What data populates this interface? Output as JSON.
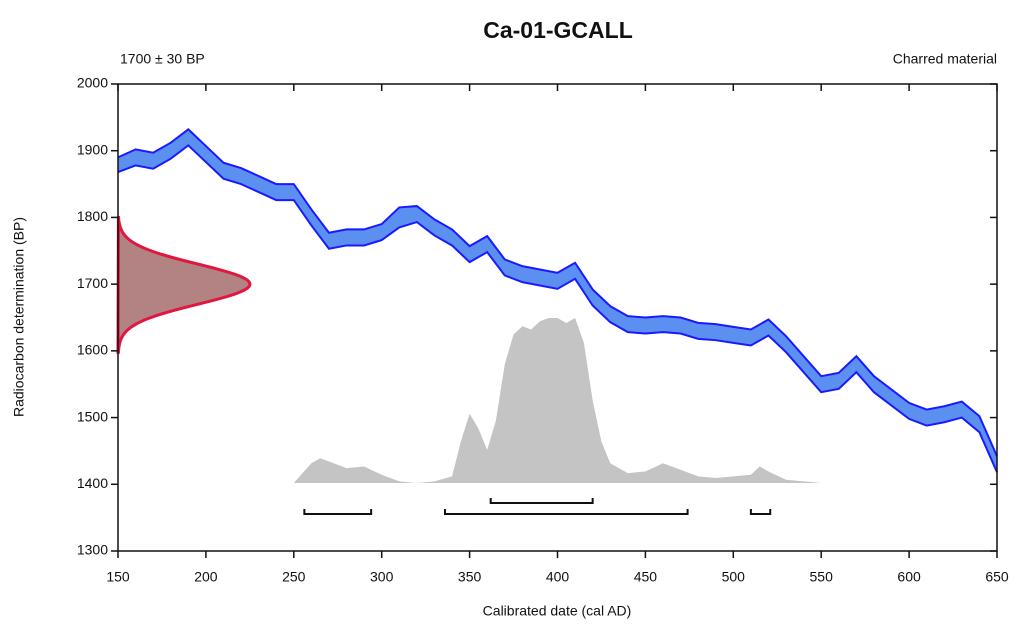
{
  "chart_data": {
    "type": "radiocarbon_calibration",
    "title": "Ca-01-GCALL",
    "measurement": {
      "label": "1700 ± 30 BP",
      "mean": 1700,
      "error": 30,
      "color": "#e0173f",
      "fill": "#b38383"
    },
    "material": "Charred material",
    "xlabel": "Calibrated date (cal AD)",
    "ylabel": "Radiocarbon determination (BP)",
    "xlim": [
      150,
      650
    ],
    "xticks": [
      150,
      200,
      250,
      300,
      350,
      400,
      450,
      500,
      550,
      600,
      650
    ],
    "ylim": [
      1300,
      2000
    ],
    "yticks": [
      1300,
      1400,
      1500,
      1600,
      1700,
      1800,
      1900,
      2000
    ],
    "calibration_curve": {
      "color": "#1a1aff",
      "fill": "#5b8ff0",
      "x": [
        150,
        160,
        170,
        180,
        190,
        200,
        210,
        220,
        230,
        240,
        250,
        260,
        270,
        280,
        290,
        300,
        310,
        320,
        330,
        340,
        350,
        360,
        370,
        380,
        390,
        400,
        410,
        420,
        430,
        440,
        450,
        460,
        470,
        480,
        490,
        500,
        510,
        520,
        530,
        540,
        550,
        560,
        570,
        580,
        590,
        600,
        610,
        620,
        630,
        640,
        650
      ],
      "upper": [
        1890,
        1902,
        1897,
        1912,
        1932,
        1907,
        1882,
        1874,
        1862,
        1850,
        1850,
        1812,
        1777,
        1782,
        1782,
        1790,
        1815,
        1817,
        1797,
        1782,
        1757,
        1772,
        1737,
        1727,
        1722,
        1717,
        1732,
        1692,
        1667,
        1652,
        1650,
        1652,
        1650,
        1642,
        1640,
        1636,
        1632,
        1647,
        1622,
        1592,
        1562,
        1567,
        1592,
        1562,
        1542,
        1522,
        1512,
        1517,
        1524,
        1502,
        1442
      ],
      "lower": [
        1868,
        1878,
        1873,
        1888,
        1908,
        1883,
        1858,
        1850,
        1838,
        1826,
        1826,
        1788,
        1753,
        1758,
        1758,
        1766,
        1785,
        1793,
        1773,
        1758,
        1733,
        1748,
        1713,
        1703,
        1698,
        1693,
        1708,
        1668,
        1643,
        1628,
        1626,
        1628,
        1626,
        1618,
        1616,
        1612,
        1608,
        1623,
        1598,
        1568,
        1538,
        1543,
        1568,
        1538,
        1518,
        1498,
        1488,
        1493,
        1500,
        1478,
        1418
      ]
    },
    "posterior": {
      "color": "#c4c4c4",
      "x": [
        250,
        260,
        265,
        270,
        280,
        290,
        300,
        310,
        320,
        330,
        340,
        345,
        350,
        355,
        360,
        365,
        370,
        375,
        380,
        385,
        390,
        395,
        400,
        405,
        410,
        415,
        420,
        425,
        430,
        440,
        450,
        460,
        470,
        480,
        490,
        500,
        510,
        515,
        520,
        530,
        540,
        550,
        580
      ],
      "values": [
        0,
        0.12,
        0.15,
        0.13,
        0.09,
        0.1,
        0.05,
        0.01,
        0,
        0.01,
        0.04,
        0.25,
        0.42,
        0.33,
        0.2,
        0.38,
        0.72,
        0.9,
        0.95,
        0.93,
        0.98,
        1,
        1,
        0.97,
        1,
        0.85,
        0.5,
        0.25,
        0.12,
        0.06,
        0.07,
        0.12,
        0.08,
        0.04,
        0.03,
        0.04,
        0.05,
        0.1,
        0.07,
        0.02,
        0.01,
        0,
        0
      ]
    },
    "ranges_68": [
      [
        362,
        420
      ]
    ],
    "ranges_95": [
      [
        256,
        294
      ],
      [
        336,
        474
      ],
      [
        510,
        521
      ]
    ]
  }
}
